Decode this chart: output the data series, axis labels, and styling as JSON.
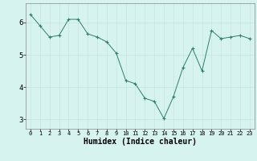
{
  "x": [
    0,
    1,
    2,
    3,
    4,
    5,
    6,
    7,
    8,
    9,
    10,
    11,
    12,
    13,
    14,
    15,
    16,
    17,
    18,
    19,
    20,
    21,
    22,
    23
  ],
  "y": [
    6.25,
    5.9,
    5.55,
    5.6,
    6.1,
    6.1,
    5.65,
    5.55,
    5.4,
    5.05,
    4.2,
    4.1,
    3.65,
    3.55,
    3.02,
    3.7,
    4.6,
    5.2,
    4.5,
    5.75,
    5.5,
    5.55,
    5.6,
    5.5
  ],
  "line_color": "#2e7d6e",
  "marker_color": "#2e7d6e",
  "bg_color": "#d7f3f0",
  "grid_color": "#c8e8e4",
  "xlabel": "Humidex (Indice chaleur)",
  "xlabel_fontsize": 7,
  "xtick_labels": [
    "0",
    "1",
    "2",
    "3",
    "4",
    "5",
    "6",
    "7",
    "8",
    "9",
    "10",
    "11",
    "12",
    "13",
    "14",
    "15",
    "16",
    "17",
    "18",
    "19",
    "20",
    "21",
    "22",
    "23"
  ],
  "xlim": [
    -0.5,
    23.5
  ],
  "ylim": [
    2.7,
    6.6
  ],
  "yticks": [
    3,
    4,
    5,
    6
  ]
}
